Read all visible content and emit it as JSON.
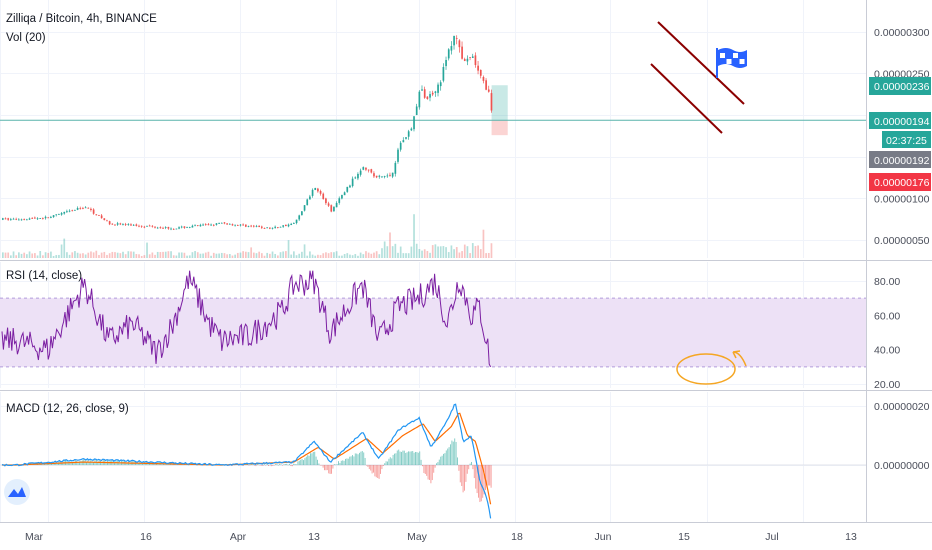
{
  "header": {
    "symbol_title": "Zilliqa / Bitcoin, 4h, BINANCE",
    "volume_title": "Vol (20)"
  },
  "rsi_pane": {
    "title": "RSI (14, close)"
  },
  "macd_pane": {
    "title": "MACD (12, 26, close, 9)"
  },
  "price_tags": {
    "target": "0.00000236",
    "current": "0.00000194",
    "countdown": "02:37:25",
    "prev_close": "0.00000192",
    "stop": "0.00000176"
  },
  "colors": {
    "up": "#26a69a",
    "down": "#ef5350",
    "channel": "#8b0000",
    "rsi_line": "#7b1fa2",
    "rsi_band": "#ede1f6",
    "macd_line": "#2196f3",
    "signal_line": "#ff6d00",
    "hline": "#58b4ac",
    "circle": "#f5a623",
    "flag": "#2962ff",
    "tag_target": "#26a69a",
    "tag_current": "#26a69a",
    "tag_prev": "#787b86",
    "tag_stop": "#f23645"
  },
  "icons": [
    "flag-icon",
    "tradingview-logo-icon"
  ],
  "chart_data": [
    {
      "type": "candlestick",
      "title": "Zilliqa / Bitcoin, 4h, BINANCE",
      "y_ticks": [
        "0.00000300",
        "0.00000250",
        "0.00000200",
        "0.00000150",
        "0.00000100",
        "0.00000050"
      ],
      "ylim": [
        3e-07,
        3.35e-06
      ],
      "x_labels": [
        "Mar",
        "16",
        "Apr",
        "13",
        "May",
        "18",
        "Jun",
        "15",
        "Jul",
        "13"
      ],
      "anchors": [
        {
          "date": "Feb 22",
          "price": 7.5e-07
        },
        {
          "date": "Mar 1",
          "price": 7.7e-07
        },
        {
          "date": "Mar 10",
          "price": 9e-07
        },
        {
          "date": "Mar 16",
          "price": 7e-07
        },
        {
          "date": "Apr 1",
          "price": 6.4e-07
        },
        {
          "date": "Apr 13",
          "price": 7e-07
        },
        {
          "date": "Apr 25",
          "price": 6.4e-07
        },
        {
          "date": "May 1",
          "price": 7e-07
        },
        {
          "date": "May 6",
          "price": 1.15e-06
        },
        {
          "date": "May 10",
          "price": 8.5e-07
        },
        {
          "date": "May 18",
          "price": 1.4e-06
        },
        {
          "date": "May 21",
          "price": 1.25e-06
        },
        {
          "date": "May 25",
          "price": 1.28e-06
        },
        {
          "date": "May 27",
          "price": 1.65e-06
        },
        {
          "date": "May 30",
          "price": 1.85e-06
        },
        {
          "date": "Jun 1",
          "price": 2.3e-06
        },
        {
          "date": "Jun 3",
          "price": 2.2e-06
        },
        {
          "date": "Jun 6",
          "price": 2.4e-06
        },
        {
          "date": "Jun 8",
          "price": 2.75e-06
        },
        {
          "date": "Jun 10",
          "price": 2.98e-06
        },
        {
          "date": "Jun 12",
          "price": 2.6e-06
        },
        {
          "date": "Jun 14",
          "price": 2.7e-06
        },
        {
          "date": "Jun 16",
          "price": 2.45e-06
        },
        {
          "date": "Jun 18",
          "price": 2.3e-06
        },
        {
          "date": "Jun 19",
          "price": 1.94e-06
        }
      ],
      "horizontal_line": 1.94e-06,
      "long_position": {
        "entry": 1.94e-06,
        "target": 2.36e-06,
        "stop": 1.76e-06,
        "from": "Jun 19",
        "to": "Jun 23"
      }
    },
    {
      "type": "line",
      "title": "RSI (14, close)",
      "y_ticks": [
        "80.00",
        "60.00",
        "40.00",
        "20.00"
      ],
      "ylim": [
        18,
        90
      ],
      "bands": [
        30,
        70
      ],
      "anchors": [
        {
          "date": "Feb 22",
          "value": 45
        },
        {
          "date": "Mar 1",
          "value": 40
        },
        {
          "date": "Mar 10",
          "value": 78
        },
        {
          "date": "Mar 16",
          "value": 45
        },
        {
          "date": "Mar 22",
          "value": 55
        },
        {
          "date": "Mar 28",
          "value": 38
        },
        {
          "date": "Apr 1",
          "value": 55
        },
        {
          "date": "Apr 5",
          "value": 82
        },
        {
          "date": "Apr 10",
          "value": 55
        },
        {
          "date": "Apr 13",
          "value": 45
        },
        {
          "date": "Apr 20",
          "value": 48
        },
        {
          "date": "Apr 28",
          "value": 62
        },
        {
          "date": "May 1",
          "value": 78
        },
        {
          "date": "May 6",
          "value": 80
        },
        {
          "date": "May 10",
          "value": 50
        },
        {
          "date": "May 18",
          "value": 78
        },
        {
          "date": "May 22",
          "value": 45
        },
        {
          "date": "May 27",
          "value": 65
        },
        {
          "date": "Jun 1",
          "value": 70
        },
        {
          "date": "Jun 5",
          "value": 80
        },
        {
          "date": "Jun 8",
          "value": 55
        },
        {
          "date": "Jun 11",
          "value": 82
        },
        {
          "date": "Jun 14",
          "value": 60
        },
        {
          "date": "Jun 16",
          "value": 65
        },
        {
          "date": "Jun 18",
          "value": 42
        },
        {
          "date": "Jun 19",
          "value": 28
        }
      ]
    },
    {
      "type": "line",
      "title": "MACD (12, 26, close, 9)",
      "y_ticks": [
        "0.00000020",
        "0.00000000"
      ],
      "ylim": [
        -2.3e-07,
        2.5e-07
      ],
      "series": [
        {
          "name": "MACD",
          "anchors": [
            {
              "date": "Feb 22",
              "value": 0
            },
            {
              "date": "Mar 10",
              "value": 2e-08
            },
            {
              "date": "Apr 13",
              "value": 0
            },
            {
              "date": "May 1",
              "value": 1e-08
            },
            {
              "date": "May 6",
              "value": 8e-08
            },
            {
              "date": "May 10",
              "value": 1e-08
            },
            {
              "date": "May 18",
              "value": 1.1e-07
            },
            {
              "date": "May 22",
              "value": 2e-08
            },
            {
              "date": "May 27",
              "value": 1.2e-07
            },
            {
              "date": "Jun 1",
              "value": 1.6e-07
            },
            {
              "date": "Jun 4",
              "value": 6e-08
            },
            {
              "date": "Jun 8",
              "value": 1.5e-07
            },
            {
              "date": "Jun 10",
              "value": 2.1e-07
            },
            {
              "date": "Jun 12",
              "value": 8e-08
            },
            {
              "date": "Jun 14",
              "value": 1e-07
            },
            {
              "date": "Jun 16",
              "value": -5e-08
            },
            {
              "date": "Jun 18",
              "value": -1.2e-07
            },
            {
              "date": "Jun 19",
              "value": -2e-07
            }
          ]
        },
        {
          "name": "Signal",
          "anchors": [
            {
              "date": "Feb 22",
              "value": 0
            },
            {
              "date": "Mar 10",
              "value": 1e-08
            },
            {
              "date": "Apr 13",
              "value": 0
            },
            {
              "date": "May 1",
              "value": 1e-08
            },
            {
              "date": "May 7",
              "value": 6e-08
            },
            {
              "date": "May 11",
              "value": 2e-08
            },
            {
              "date": "May 19",
              "value": 9e-08
            },
            {
              "date": "May 23",
              "value": 4e-08
            },
            {
              "date": "May 28",
              "value": 1e-07
            },
            {
              "date": "Jun 2",
              "value": 1.4e-07
            },
            {
              "date": "Jun 5",
              "value": 8e-08
            },
            {
              "date": "Jun 9",
              "value": 1.3e-07
            },
            {
              "date": "Jun 11",
              "value": 1.8e-07
            },
            {
              "date": "Jun 13",
              "value": 1e-07
            },
            {
              "date": "Jun 15",
              "value": 8e-08
            },
            {
              "date": "Jun 17",
              "value": -2e-08
            },
            {
              "date": "Jun 18",
              "value": -8e-08
            },
            {
              "date": "Jun 19",
              "value": -1.5e-07
            }
          ]
        }
      ]
    }
  ]
}
